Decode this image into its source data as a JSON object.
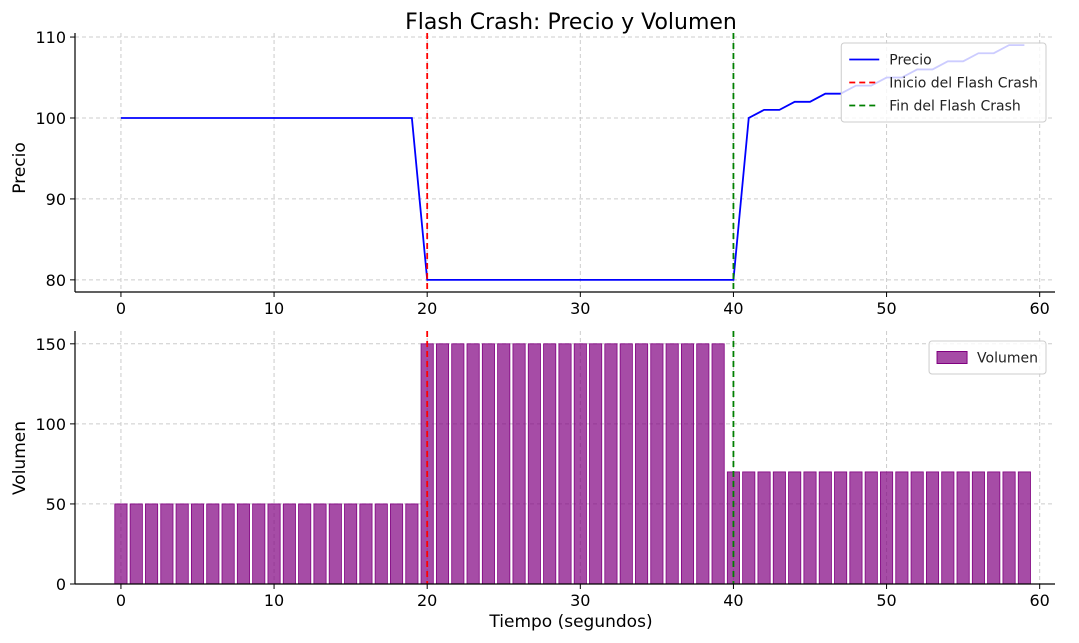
{
  "chart_data": [
    {
      "type": "line",
      "title": "Flash Crash: Precio y Volumen",
      "xlabel": "",
      "ylabel": "Precio",
      "xlim": [
        -3,
        61
      ],
      "ylim": [
        78.5,
        110.5
      ],
      "xticks": [
        0,
        10,
        20,
        30,
        40,
        50,
        60
      ],
      "yticks": [
        80,
        90,
        100,
        110
      ],
      "grid": true,
      "legend_position": "top-right",
      "series": [
        {
          "name": "Precio",
          "color": "#0000ff",
          "x": [
            0,
            1,
            2,
            3,
            4,
            5,
            6,
            7,
            8,
            9,
            10,
            11,
            12,
            13,
            14,
            15,
            16,
            17,
            18,
            19,
            20,
            21,
            22,
            23,
            24,
            25,
            26,
            27,
            28,
            29,
            30,
            31,
            32,
            33,
            34,
            35,
            36,
            37,
            38,
            39,
            40,
            41,
            42,
            43,
            44,
            45,
            46,
            47,
            48,
            49,
            50,
            51,
            52,
            53,
            54,
            55,
            56,
            57,
            58,
            59
          ],
          "values": [
            100,
            100,
            100,
            100,
            100,
            100,
            100,
            100,
            100,
            100,
            100,
            100,
            100,
            100,
            100,
            100,
            100,
            100,
            100,
            100,
            80,
            80,
            80,
            80,
            80,
            80,
            80,
            80,
            80,
            80,
            80,
            80,
            80,
            80,
            80,
            80,
            80,
            80,
            80,
            80,
            80,
            100,
            101,
            101,
            102,
            102,
            103,
            103,
            104,
            104,
            105,
            105,
            106,
            106,
            107,
            107,
            108,
            108,
            109,
            109
          ]
        }
      ],
      "vlines": [
        {
          "name": "Inicio del Flash Crash",
          "x": 20,
          "color": "#ff0000",
          "style": "dashed"
        },
        {
          "name": "Fin del Flash Crash",
          "x": 40,
          "color": "#008000",
          "style": "dashed"
        }
      ]
    },
    {
      "type": "bar",
      "title": "",
      "xlabel": "Tiempo (segundos)",
      "ylabel": "Volumen",
      "xlim": [
        -3,
        61
      ],
      "ylim": [
        0,
        158
      ],
      "xticks": [
        0,
        10,
        20,
        30,
        40,
        50,
        60
      ],
      "yticks": [
        0,
        50,
        100,
        150
      ],
      "grid": true,
      "legend_position": "top-right",
      "series": [
        {
          "name": "Volumen",
          "color": "#800080",
          "x": [
            0,
            1,
            2,
            3,
            4,
            5,
            6,
            7,
            8,
            9,
            10,
            11,
            12,
            13,
            14,
            15,
            16,
            17,
            18,
            19,
            20,
            21,
            22,
            23,
            24,
            25,
            26,
            27,
            28,
            29,
            30,
            31,
            32,
            33,
            34,
            35,
            36,
            37,
            38,
            39,
            40,
            41,
            42,
            43,
            44,
            45,
            46,
            47,
            48,
            49,
            50,
            51,
            52,
            53,
            54,
            55,
            56,
            57,
            58,
            59
          ],
          "values": [
            50,
            50,
            50,
            50,
            50,
            50,
            50,
            50,
            50,
            50,
            50,
            50,
            50,
            50,
            50,
            50,
            50,
            50,
            50,
            50,
            150,
            150,
            150,
            150,
            150,
            150,
            150,
            150,
            150,
            150,
            150,
            150,
            150,
            150,
            150,
            150,
            150,
            150,
            150,
            150,
            70,
            70,
            70,
            70,
            70,
            70,
            70,
            70,
            70,
            70,
            70,
            70,
            70,
            70,
            70,
            70,
            70,
            70,
            70,
            70
          ]
        }
      ],
      "vlines": [
        {
          "name": "Inicio del Flash Crash",
          "x": 20,
          "color": "#ff0000",
          "style": "dashed"
        },
        {
          "name": "Fin del Flash Crash",
          "x": 40,
          "color": "#008000",
          "style": "dashed"
        }
      ]
    }
  ]
}
